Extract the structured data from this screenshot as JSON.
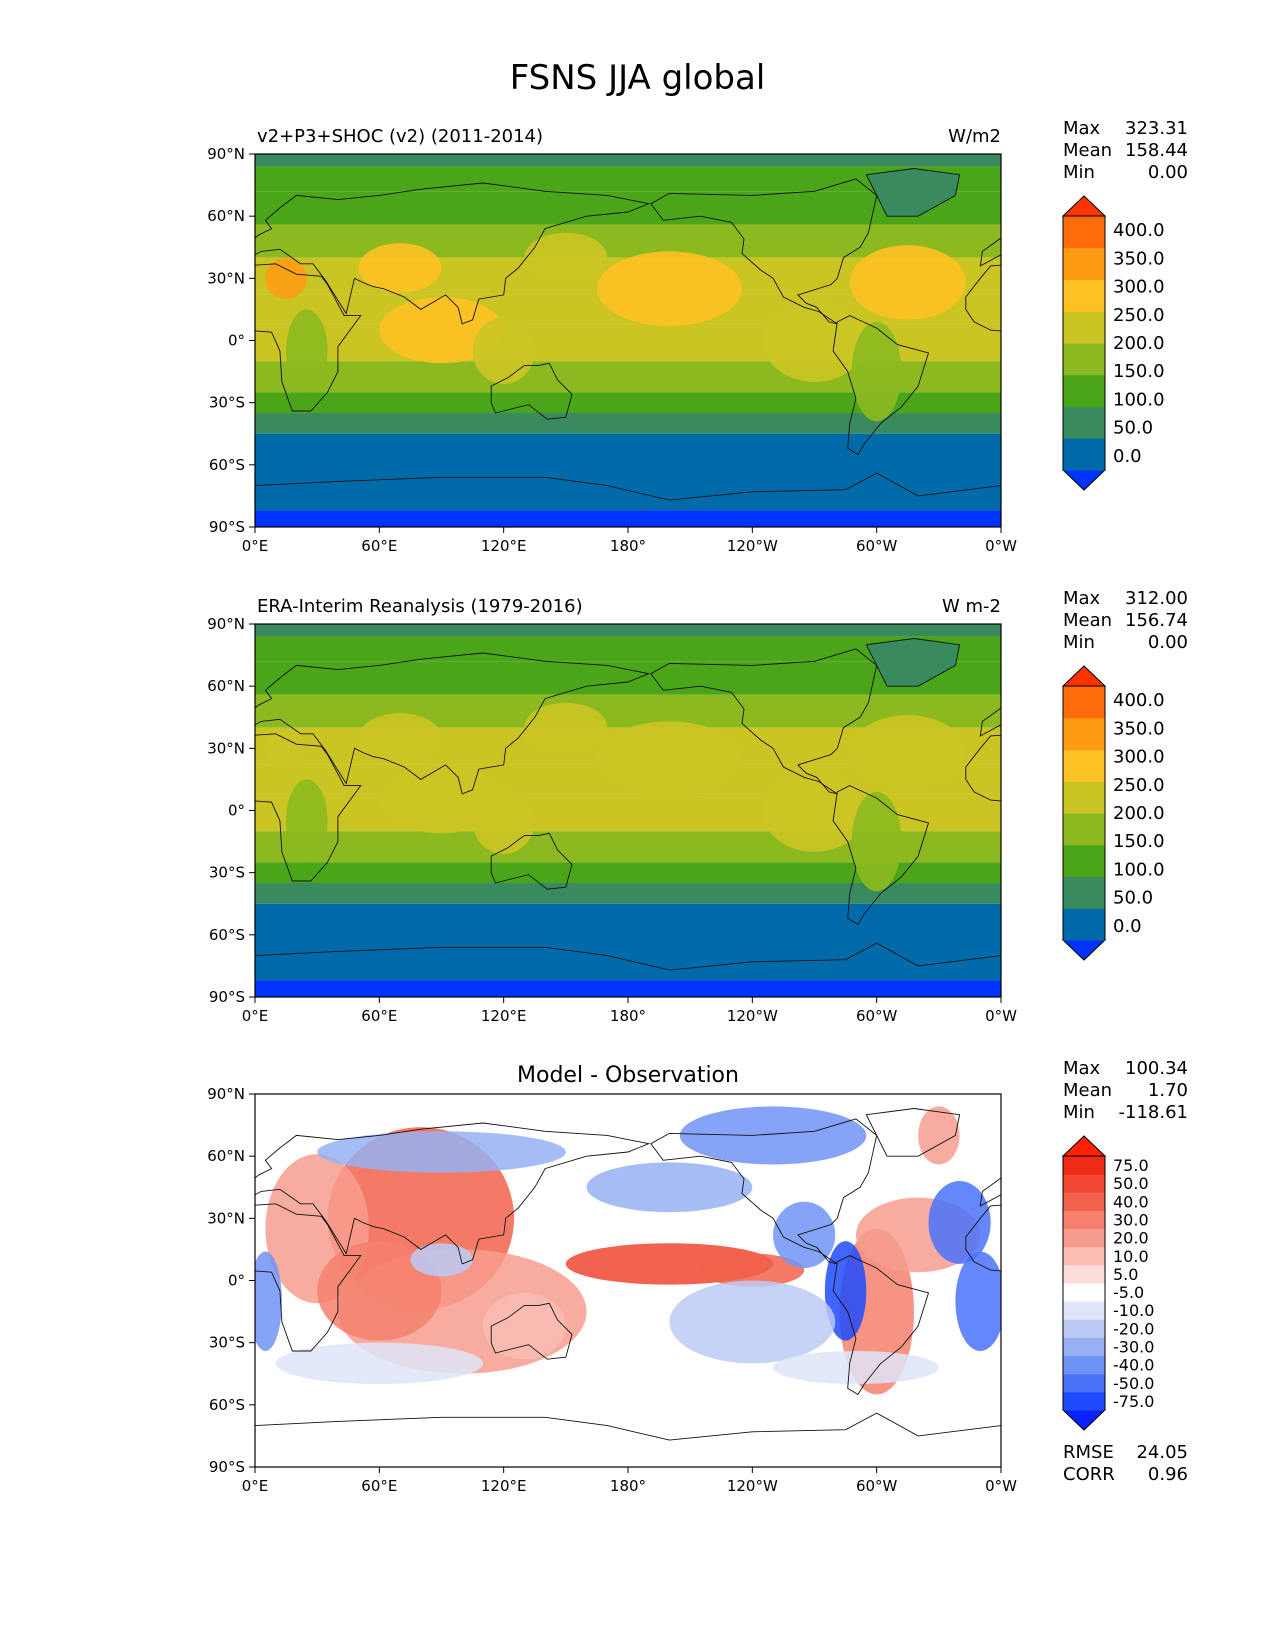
{
  "title": "FSNS JJA global",
  "lon_ticks": [
    "0°E",
    "60°E",
    "120°E",
    "180°",
    "120°W",
    "60°W",
    "0°W"
  ],
  "lat_ticks": [
    "90°N",
    "60°N",
    "30°N",
    "0°",
    "30°S",
    "60°S",
    "90°S"
  ],
  "panels": [
    {
      "id": "model",
      "title_left": "v2+P3+SHOC (v2) (2011-2014)",
      "title_center": "",
      "units": "W/m2",
      "stats": [
        {
          "label": "Max",
          "value": "323.31"
        },
        {
          "label": "Mean",
          "value": "158.44"
        },
        {
          "label": "Min",
          "value": "0.00"
        }
      ],
      "colorbar": {
        "colors": [
          "#0033ff",
          "#006ba8",
          "#3a8a5f",
          "#4aa519",
          "#8cb91f",
          "#cbc524",
          "#fdc123",
          "#fd9c13",
          "#fd6b0a",
          "#ff3300"
        ],
        "labels": [
          "0.0",
          "50.0",
          "100.0",
          "150.0",
          "200.0",
          "250.0",
          "300.0",
          "350.0",
          "400.0"
        ]
      },
      "extra_stats": []
    },
    {
      "id": "obs",
      "title_left": "ERA-Interim Reanalysis (1979-2016)",
      "title_center": "",
      "units": "W m-2",
      "stats": [
        {
          "label": "Max",
          "value": "312.00"
        },
        {
          "label": "Mean",
          "value": "156.74"
        },
        {
          "label": "Min",
          "value": "0.00"
        }
      ],
      "colorbar": {
        "colors": [
          "#0033ff",
          "#006ba8",
          "#3a8a5f",
          "#4aa519",
          "#8cb91f",
          "#cbc524",
          "#fdc123",
          "#fd9c13",
          "#fd6b0a",
          "#ff3300"
        ],
        "labels": [
          "0.0",
          "50.0",
          "100.0",
          "150.0",
          "200.0",
          "250.0",
          "300.0",
          "350.0",
          "400.0"
        ]
      },
      "extra_stats": []
    },
    {
      "id": "diff",
      "title_left": "",
      "title_center": "Model - Observation",
      "units": "",
      "stats": [
        {
          "label": "Max",
          "value": "100.34"
        },
        {
          "label": "Mean",
          "value": "1.70"
        },
        {
          "label": "Min",
          "value": "-118.61"
        }
      ],
      "colorbar": {
        "colors": [
          "#0a22ff",
          "#1f4bff",
          "#4a72fb",
          "#7094f6",
          "#97b0f2",
          "#bccaf4",
          "#dfe5f8",
          "#ffffff",
          "#fbdcd8",
          "#f9bdb4",
          "#f79d8f",
          "#f5806d",
          "#f2614b",
          "#f04632",
          "#ee2c18",
          "#ff2200"
        ],
        "labels": [
          "-75.0",
          "-50.0",
          "-40.0",
          "-30.0",
          "-20.0",
          "-10.0",
          "-5.0",
          "5.0",
          "10.0",
          "20.0",
          "30.0",
          "40.0",
          "50.0",
          "75.0"
        ]
      },
      "extra_stats": [
        {
          "label": "RMSE",
          "value": "24.05"
        },
        {
          "label": "CORR",
          "value": "0.96"
        }
      ]
    }
  ]
}
